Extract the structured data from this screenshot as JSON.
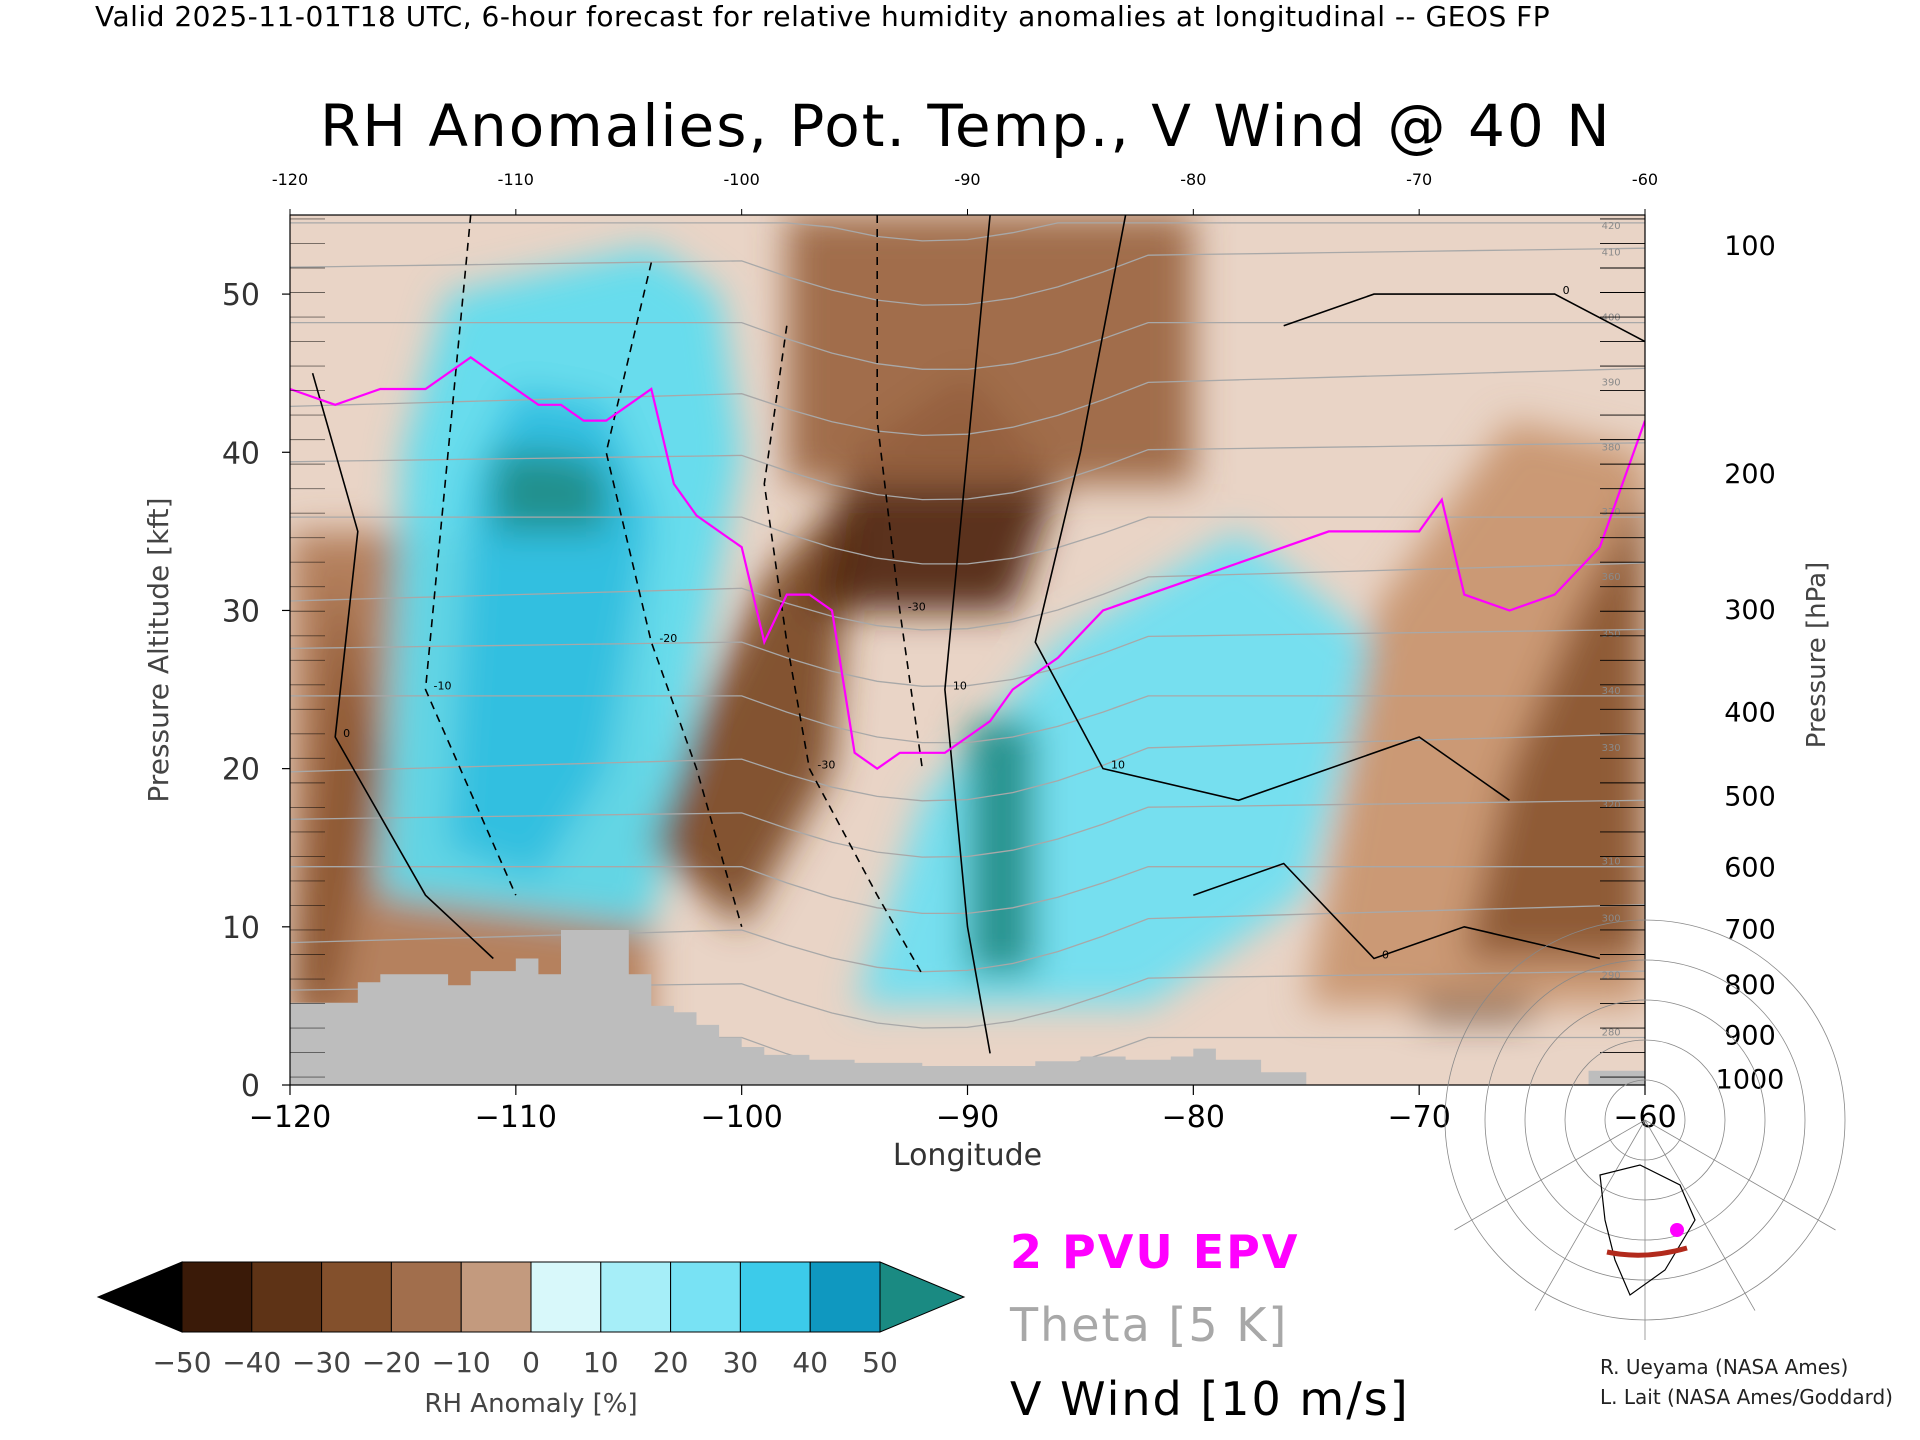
{
  "header": "Valid 2025-11-01T18 UTC, 6-hour forecast for relative humidity anomalies at longitudinal -- GEOS FP",
  "title": "RH Anomalies, Pot. Temp., V Wind @ 40 N",
  "legend": {
    "epv": "2 PVU EPV",
    "theta": "Theta [5 K]",
    "vwind": "V Wind [10 m/s]"
  },
  "colorbar": {
    "label": "RH Anomaly [%]",
    "ticks": [
      "-50",
      "-40",
      "-30",
      "-20",
      "-10",
      "0",
      "10",
      "20",
      "30",
      "40",
      "50"
    ],
    "colors": [
      "#3a1a08",
      "#5e3316",
      "#83502c",
      "#a16e4c",
      "#c39a7e",
      "#ecd8cc",
      "#d8f8fa",
      "#a6eef8",
      "#78e2f4",
      "#3ccbea",
      "#0f98c0"
    ],
    "under_color": "#000000",
    "over_color": "#1a8a82"
  },
  "credits": [
    "R. Ueyama (NASA Ames)",
    "L. Lait (NASA Ames/Goddard)"
  ],
  "colors": {
    "epv": "#ff00ff",
    "theta": "#a8a8a8",
    "vwind": "#000000",
    "terrain": "#bdbdbd"
  },
  "chart_data": {
    "type": "heatmap",
    "xlabel": "Longitude",
    "ylabel": "Pressure Altitude [kft]",
    "y2label": "Pressure [hPa]",
    "xlim": [
      -120,
      -60
    ],
    "ylim": [
      0,
      55
    ],
    "xticks": [
      "-120",
      "-110",
      "-100",
      "-90",
      "-80",
      "-70",
      "-60"
    ],
    "yticks": [
      "0",
      "10",
      "20",
      "30",
      "40",
      "50"
    ],
    "top_ticks": [
      "-120",
      "-110",
      "-100",
      "-90",
      "-80",
      "-70",
      "-60"
    ],
    "pressure_ticks": [
      {
        "p": "100",
        "kft": 53.1
      },
      {
        "p": "200",
        "kft": 38.7
      },
      {
        "p": "300",
        "kft": 30.1
      },
      {
        "p": "400",
        "kft": 23.6
      },
      {
        "p": "500",
        "kft": 18.3
      },
      {
        "p": "600",
        "kft": 13.8
      },
      {
        "p": "700",
        "kft": 9.9
      },
      {
        "p": "800",
        "kft": 6.4
      },
      {
        "p": "900",
        "kft": 3.2
      },
      {
        "p": "1000",
        "kft": 0.4
      }
    ],
    "terrain": {
      "lon": [
        -120,
        -118,
        -117,
        -116,
        -114,
        -113,
        -112,
        -110,
        -109,
        -108,
        -106,
        -105,
        -104,
        -103,
        -102,
        -101,
        -100,
        -99,
        -97,
        -95,
        -92,
        -90,
        -87,
        -85,
        -83,
        -81,
        -80,
        -79,
        -77,
        -75,
        -75
      ],
      "kft": [
        5.2,
        5.2,
        6.5,
        7.0,
        7.0,
        6.3,
        7.2,
        8.0,
        7.0,
        9.8,
        9.8,
        7.0,
        5.0,
        4.6,
        3.8,
        3.0,
        2.4,
        1.9,
        1.6,
        1.4,
        1.2,
        1.2,
        1.5,
        1.8,
        1.6,
        1.8,
        2.3,
        1.6,
        0.8,
        0.4,
        0.0
      ]
    },
    "anomaly_regions": [
      {
        "color": "#b07a55",
        "lon": [
          -120,
          -104,
          -104,
          -120
        ],
        "kft": [
          0,
          0,
          35,
          35
        ]
      },
      {
        "color": "#8a5530",
        "lon": [
          -120,
          -118,
          -116,
          -118
        ],
        "kft": [
          5,
          5,
          20,
          33
        ]
      },
      {
        "color": "#5bdcf0",
        "lon": [
          -116,
          -104,
          -100,
          -101,
          -104,
          -113,
          -115
        ],
        "kft": [
          12,
          10,
          40,
          50,
          53,
          50,
          40
        ]
      },
      {
        "color": "#2fbde0",
        "lon": [
          -113,
          -109,
          -106,
          -104,
          -106,
          -110,
          -112
        ],
        "kft": [
          15,
          13,
          20,
          36,
          43,
          44,
          38
        ]
      },
      {
        "color": "#1f8c86",
        "lon": [
          -111,
          -106,
          -106,
          -108,
          -111
        ],
        "kft": [
          35,
          35,
          39,
          40,
          40
        ]
      },
      {
        "color": "#7a4622",
        "lon": [
          -104,
          -100,
          -96,
          -95,
          -99,
          -102
        ],
        "kft": [
          15,
          10,
          20,
          38,
          32,
          23
        ]
      },
      {
        "color": "#4e2510",
        "lon": [
          -97,
          -88,
          -86,
          -90,
          -95
        ],
        "kft": [
          30,
          30,
          38,
          45,
          40
        ]
      },
      {
        "color": "#9a6440",
        "lon": [
          -98,
          -80,
          -80,
          -90,
          -98
        ],
        "kft": [
          38,
          38,
          55,
          55,
          55
        ]
      },
      {
        "color": "#6bdff2",
        "lon": [
          -95,
          -82,
          -75,
          -72,
          -78,
          -86,
          -92
        ],
        "kft": [
          5,
          5,
          12,
          28,
          35,
          28,
          18
        ]
      },
      {
        "color": "#1f8c86",
        "lon": [
          -90,
          -87,
          -87,
          -90
        ],
        "kft": [
          7,
          7,
          23,
          23
        ]
      },
      {
        "color": "#c8946c",
        "lon": [
          -75,
          -60,
          -60,
          -66,
          -72
        ],
        "kft": [
          5,
          5,
          40,
          42,
          30
        ]
      },
      {
        "color": "#8a5530",
        "lon": [
          -68,
          -60,
          -60,
          -63,
          -66
        ],
        "kft": [
          8,
          8,
          38,
          30,
          20
        ]
      },
      {
        "color": "#2a1206",
        "lon": [
          -70,
          -65,
          -65,
          -70
        ],
        "kft": [
          4.3,
          4.3,
          5.3,
          5.3
        ]
      }
    ],
    "epv_2pvu": {
      "lon": [
        -120,
        -118,
        -116,
        -114,
        -112,
        -110,
        -109,
        -108,
        -107,
        -106,
        -105,
        -104,
        -103,
        -102,
        -101,
        -100,
        -99,
        -98,
        -97,
        -96,
        -95,
        -94,
        -93,
        -92,
        -91,
        -90,
        -89,
        -88,
        -86,
        -84,
        -82,
        -80,
        -78,
        -76,
        -74,
        -72,
        -70,
        -69,
        -68,
        -66,
        -64,
        -62,
        -60
      ],
      "kft": [
        44,
        43,
        44,
        44,
        46,
        44,
        43,
        43,
        42,
        42,
        43,
        44,
        38,
        36,
        35,
        34,
        28,
        31,
        31,
        30,
        21,
        20,
        21,
        21,
        21,
        22,
        23,
        25,
        27,
        30,
        31,
        32,
        33,
        34,
        35,
        35,
        35,
        37,
        31,
        30,
        31,
        34,
        42
      ]
    },
    "series_note_theta_levels": [
      "280",
      "290",
      "300",
      "310",
      "320",
      "330",
      "340",
      "350",
      "360",
      "370",
      "380",
      "390",
      "400",
      "410",
      "420"
    ],
    "vwind_levels": [
      "-30",
      "-20",
      "-10",
      "0",
      "10",
      "20",
      "30"
    ]
  }
}
